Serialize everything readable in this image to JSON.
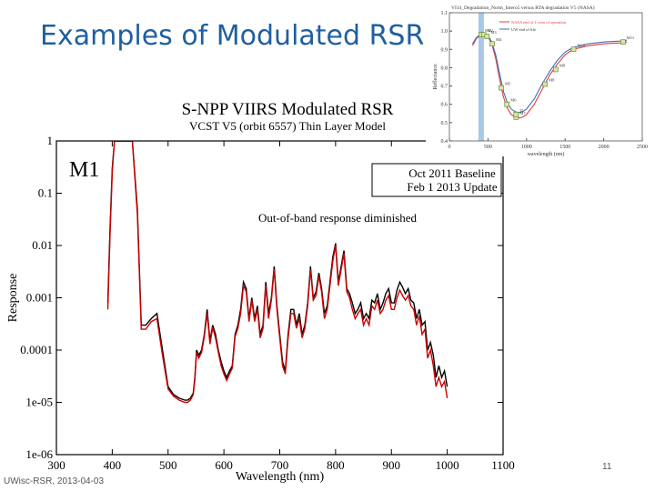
{
  "slide": {
    "title": "Examples of Modulated RSR...",
    "footer_left": "UWisc-RSR, 2013-04-03",
    "page_number": "11",
    "annotation": "Out-of-band response diminished",
    "band_label": "M1"
  },
  "chart_data": [
    {
      "type": "line",
      "title": "S-NPP VIIRS Modulated RSR",
      "subtitle": "VCST V5 (orbit 6557) Thin Layer Model",
      "xlabel": "Wavelength (nm)",
      "ylabel": "Response",
      "xscale": "linear",
      "yscale": "log",
      "xlim": [
        300,
        1100
      ],
      "ylim": [
        1e-06,
        1
      ],
      "xticks": [
        300,
        400,
        500,
        600,
        700,
        800,
        900,
        1000,
        1100
      ],
      "yticks": [
        1,
        0.1,
        0.01,
        0.001,
        0.0001,
        1e-05,
        1e-06
      ],
      "ytick_labels": [
        "1",
        "0.1",
        "0.01",
        "0.001",
        "0.0001",
        "1e-05",
        "1e-06"
      ],
      "legend": {
        "position": "top-right",
        "entries": [
          "Oct 2011 Baseline",
          "Feb 1 2013 Update"
        ]
      },
      "series": [
        {
          "name": "Oct 2011 Baseline",
          "color": "#000000",
          "x": [
            392,
            396,
            400,
            404,
            410,
            415,
            420,
            428,
            436,
            445,
            452,
            460,
            470,
            480,
            490,
            500,
            510,
            515,
            520,
            530,
            535,
            540,
            545,
            548,
            551,
            555,
            560,
            565,
            570,
            575,
            580,
            585,
            590,
            595,
            600,
            605,
            610,
            615,
            620,
            625,
            630,
            635,
            640,
            645,
            650,
            655,
            660,
            665,
            670,
            675,
            680,
            685,
            690,
            695,
            700,
            705,
            710,
            715,
            720,
            725,
            730,
            735,
            740,
            745,
            750,
            755,
            760,
            765,
            770,
            775,
            780,
            785,
            790,
            795,
            800,
            805,
            810,
            815,
            820,
            825,
            830,
            835,
            840,
            845,
            850,
            855,
            860,
            865,
            870,
            875,
            880,
            885,
            890,
            895,
            900,
            905,
            910,
            915,
            920,
            925,
            930,
            935,
            940,
            945,
            950,
            955,
            960,
            965,
            970,
            975,
            980,
            985,
            990,
            995,
            1000
          ],
          "values": [
            0.0008,
            0.02,
            0.3,
            1,
            1,
            1,
            1,
            1,
            1,
            0.05,
            0.0003,
            0.0003,
            0.0004,
            0.0005,
            0.0001,
            2e-05,
            1.4e-05,
            1.3e-05,
            1.2e-05,
            1.1e-05,
            1.1e-05,
            1.2e-05,
            1.5e-05,
            3e-05,
            0.0001,
            8e-05,
            0.0001,
            0.0002,
            0.0006,
            0.00015,
            0.0003,
            0.0002,
            0.0001,
            6e-05,
            4e-05,
            3e-05,
            4e-05,
            5e-05,
            0.0002,
            0.0003,
            0.0006,
            0.002,
            0.0015,
            0.0004,
            0.001,
            0.0004,
            0.0007,
            0.0002,
            0.0003,
            0.002,
            0.0005,
            0.001,
            0.004,
            0.0007,
            0.0002,
            6e-05,
            4e-05,
            0.0002,
            0.0006,
            0.0006,
            0.0003,
            0.0005,
            0.0002,
            0.0003,
            0.0008,
            0.004,
            0.001,
            0.0013,
            0.003,
            0.0015,
            0.0005,
            0.0007,
            0.002,
            0.006,
            0.011,
            0.002,
            0.004,
            0.008,
            0.0015,
            0.0012,
            0.0008,
            0.0005,
            0.0006,
            0.0008,
            0.0004,
            0.0005,
            0.0004,
            0.0009,
            0.0008,
            0.0012,
            0.0006,
            0.0008,
            0.0012,
            0.0015,
            0.0008,
            0.0008,
            0.0014,
            0.002,
            0.0016,
            0.0012,
            0.0015,
            0.0009,
            0.0008,
            0.0004,
            0.0006,
            0.0003,
            0.00035,
            0.0001,
            0.00014,
            8e-05,
            3e-05,
            5e-05,
            3e-05,
            4e-05,
            2e-05
          ]
        },
        {
          "name": "Feb 1 2013 Update",
          "color": "#cc0000",
          "x": [
            392,
            396,
            400,
            404,
            410,
            415,
            420,
            428,
            436,
            445,
            452,
            460,
            470,
            480,
            490,
            500,
            510,
            515,
            520,
            530,
            535,
            540,
            545,
            548,
            551,
            555,
            560,
            565,
            570,
            575,
            580,
            585,
            590,
            595,
            600,
            605,
            610,
            615,
            620,
            625,
            630,
            635,
            640,
            645,
            650,
            655,
            660,
            665,
            670,
            675,
            680,
            685,
            690,
            695,
            700,
            705,
            710,
            715,
            720,
            725,
            730,
            735,
            740,
            745,
            750,
            755,
            760,
            765,
            770,
            775,
            780,
            785,
            790,
            795,
            800,
            805,
            810,
            815,
            820,
            825,
            830,
            835,
            840,
            845,
            850,
            855,
            860,
            865,
            870,
            875,
            880,
            885,
            890,
            895,
            900,
            905,
            910,
            915,
            920,
            925,
            930,
            935,
            940,
            945,
            950,
            955,
            960,
            965,
            970,
            975,
            980,
            985,
            990,
            995,
            1000
          ],
          "values": [
            0.0006,
            0.015,
            0.25,
            1,
            1,
            1,
            1,
            1,
            1,
            0.04,
            0.00025,
            0.00025,
            0.00035,
            0.0004,
            8e-05,
            1.8e-05,
            1.3e-05,
            1.2e-05,
            1.1e-05,
            1e-05,
            1e-05,
            1.1e-05,
            1.4e-05,
            2.7e-05,
            9e-05,
            7e-05,
            9e-05,
            0.00018,
            0.0005,
            0.00013,
            0.00027,
            0.00017,
            9e-05,
            5e-05,
            3.5e-05,
            2.6e-05,
            3.5e-05,
            4.5e-05,
            0.00018,
            0.00026,
            0.0005,
            0.0017,
            0.0013,
            0.00035,
            0.0009,
            0.00035,
            0.0006,
            0.00017,
            0.00026,
            0.0017,
            0.0004,
            0.0009,
            0.0035,
            0.0006,
            0.00017,
            5e-05,
            3.5e-05,
            0.00017,
            0.0005,
            0.0005,
            0.00026,
            0.0004,
            0.00017,
            0.00026,
            0.0007,
            0.0035,
            0.0009,
            0.0011,
            0.0026,
            0.0013,
            0.0004,
            0.0006,
            0.0017,
            0.005,
            0.01,
            0.0017,
            0.0035,
            0.007,
            0.0013,
            0.001,
            0.0006,
            0.0004,
            0.0005,
            0.0006,
            0.0003,
            0.0004,
            0.0003,
            0.0007,
            0.0006,
            0.0009,
            0.0005,
            0.0006,
            0.0009,
            0.0011,
            0.0006,
            0.0006,
            0.001,
            0.0014,
            0.0011,
            0.0009,
            0.0011,
            0.0007,
            0.0006,
            0.0003,
            0.00045,
            0.0002,
            0.00025,
            7e-05,
            0.0001,
            5e-05,
            2e-05,
            3e-05,
            2e-05,
            2.5e-05,
            1.2e-05
          ]
        }
      ]
    },
    {
      "type": "line",
      "title": "VI14_Degradation_Norm_Intero5 versus RTA degradation V5 (NASA)",
      "xlabel": "wavelength (nm)",
      "ylabel": "Reflectance",
      "xlim": [
        0,
        2500
      ],
      "ylim": [
        0.4,
        1.1
      ],
      "xticks": [
        0,
        500,
        1000,
        1500,
        2000,
        2500
      ],
      "yticks": [
        0.4,
        0.5,
        0.6,
        0.7,
        0.8,
        0.9,
        1.0,
        1.1
      ],
      "ytick_labels": [
        "0.4",
        "0.5",
        "0.6",
        "0.7",
        "0.8",
        "0.9",
        "1.0",
        "1.1"
      ],
      "legend": {
        "position": "top-left",
        "entries": [
          "NASA end of 1-year of operation",
          "UW end of life"
        ]
      },
      "highlight_x": 412,
      "series": [
        {
          "name": "NASA end of 1-year of operation",
          "color": "#e03c3c",
          "x": [
            300,
            350,
            400,
            450,
            500,
            550,
            600,
            650,
            700,
            750,
            800,
            850,
            900,
            950,
            1000,
            1100,
            1200,
            1300,
            1400,
            1500,
            1600,
            1800,
            2000,
            2200,
            2300
          ],
          "values": [
            0.92,
            0.96,
            0.975,
            0.98,
            0.97,
            0.93,
            0.85,
            0.74,
            0.64,
            0.58,
            0.545,
            0.53,
            0.525,
            0.53,
            0.545,
            0.6,
            0.68,
            0.76,
            0.82,
            0.87,
            0.9,
            0.92,
            0.93,
            0.935,
            0.94
          ]
        },
        {
          "name": "UW end of life",
          "color": "#3f6fb5",
          "x": [
            300,
            350,
            400,
            450,
            500,
            550,
            600,
            650,
            700,
            750,
            800,
            850,
            900,
            950,
            1000,
            1100,
            1200,
            1300,
            1400,
            1500,
            1600,
            1800,
            2000,
            2200,
            2300
          ],
          "values": [
            0.93,
            0.965,
            0.98,
            0.985,
            0.975,
            0.94,
            0.87,
            0.77,
            0.67,
            0.61,
            0.575,
            0.56,
            0.555,
            0.56,
            0.575,
            0.63,
            0.71,
            0.78,
            0.84,
            0.885,
            0.91,
            0.93,
            0.94,
            0.945,
            0.95
          ]
        }
      ],
      "band_markers": [
        {
          "label": "M1",
          "x": 412,
          "y": 0.98
        },
        {
          "label": "M2",
          "x": 445,
          "y": 0.98
        },
        {
          "label": "M3",
          "x": 488,
          "y": 0.97
        },
        {
          "label": "M4",
          "x": 555,
          "y": 0.93
        },
        {
          "label": "M5",
          "x": 672,
          "y": 0.69
        },
        {
          "label": "M6",
          "x": 746,
          "y": 0.6
        },
        {
          "label": "M7",
          "x": 865,
          "y": 0.53
        },
        {
          "label": "I2",
          "x": 865,
          "y": 0.545
        },
        {
          "label": "M8",
          "x": 1240,
          "y": 0.71
        },
        {
          "label": "M9",
          "x": 1378,
          "y": 0.79
        },
        {
          "label": "M10",
          "x": 1610,
          "y": 0.9
        },
        {
          "label": "M11",
          "x": 2250,
          "y": 0.94
        }
      ]
    }
  ]
}
